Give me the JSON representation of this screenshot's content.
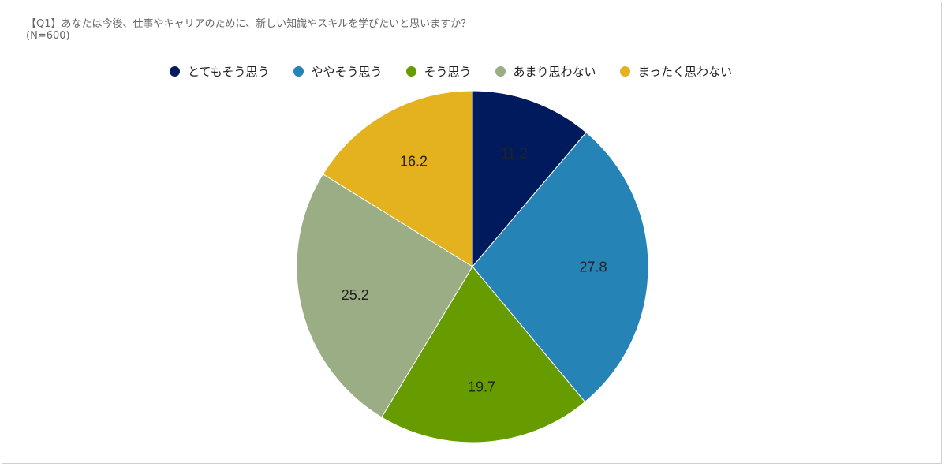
{
  "chart_data": {
    "type": "pie",
    "title": "【Q1】あなたは今後、仕事やキャリアのために、新しい知識やスキルを学びたいと思いますか？",
    "subtitle": "(N=600)",
    "legend_position": "top",
    "categories": [
      "とてもそう思う",
      "ややそう思う",
      "そう思う",
      "あまり思わない",
      "まったく思わない"
    ],
    "values": [
      11.2,
      27.8,
      19.7,
      25.2,
      16.2
    ],
    "labels": [
      "11.2",
      "27.8",
      "19.7",
      "25.2",
      "16.2"
    ],
    "colors": [
      "#001a5e",
      "#2683b5",
      "#669c00",
      "#9aad85",
      "#e5b21f"
    ]
  }
}
